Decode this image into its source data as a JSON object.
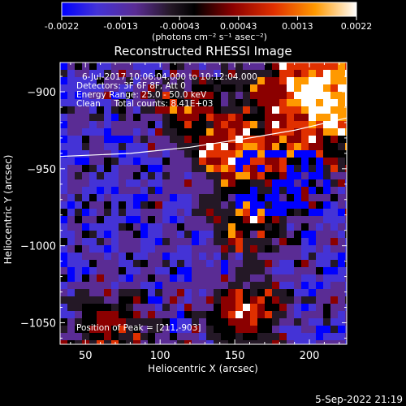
{
  "chart_data": {
    "type": "heatmap",
    "title": "Reconstructed RHESSI Image",
    "xlabel": "Heliocentric X (arcsec)",
    "ylabel": "Heliocentric Y (arcsec)",
    "xlim": [
      33,
      225
    ],
    "ylim": [
      -1064,
      -881
    ],
    "xticks": [
      50,
      100,
      150,
      200
    ],
    "yticks": [
      -900,
      -950,
      -1000,
      -1050
    ],
    "colorbar": {
      "min": -0.0022,
      "max": 0.0022,
      "ticks": [
        "-0.0022",
        "-0.0013",
        "-0.00043",
        "0.00043",
        "0.0013",
        "0.0022"
      ],
      "unit_label": "(photons cm⁻² s⁻¹ asec⁻²)",
      "colors": [
        "#0000ff",
        "#4433d6",
        "#5a2c94",
        "#241826",
        "#000000",
        "#8b0000",
        "#e03000",
        "#ff9900",
        "#ffffff"
      ]
    },
    "annotations": [
      "6-Jul-2017 10:06:04.000 to 10:12:04.000",
      "Detectors: 3F 6F 8F, Att 0",
      "Energy Range: 25.0 - 50.0 keV",
      "Clean     Total counts: 8.41E+03"
    ],
    "peak_label": "Position of Peak = [211,-903]",
    "peak": [
      211,
      -903
    ],
    "limb_curve": [
      [
        33,
        -942
      ],
      [
        80,
        -940
      ],
      [
        120,
        -936
      ],
      [
        160,
        -930
      ],
      [
        190,
        -925
      ],
      [
        225,
        -917
      ]
    ],
    "grid": false
  },
  "footer": {
    "timestamp": "5-Sep-2022 21:19"
  }
}
